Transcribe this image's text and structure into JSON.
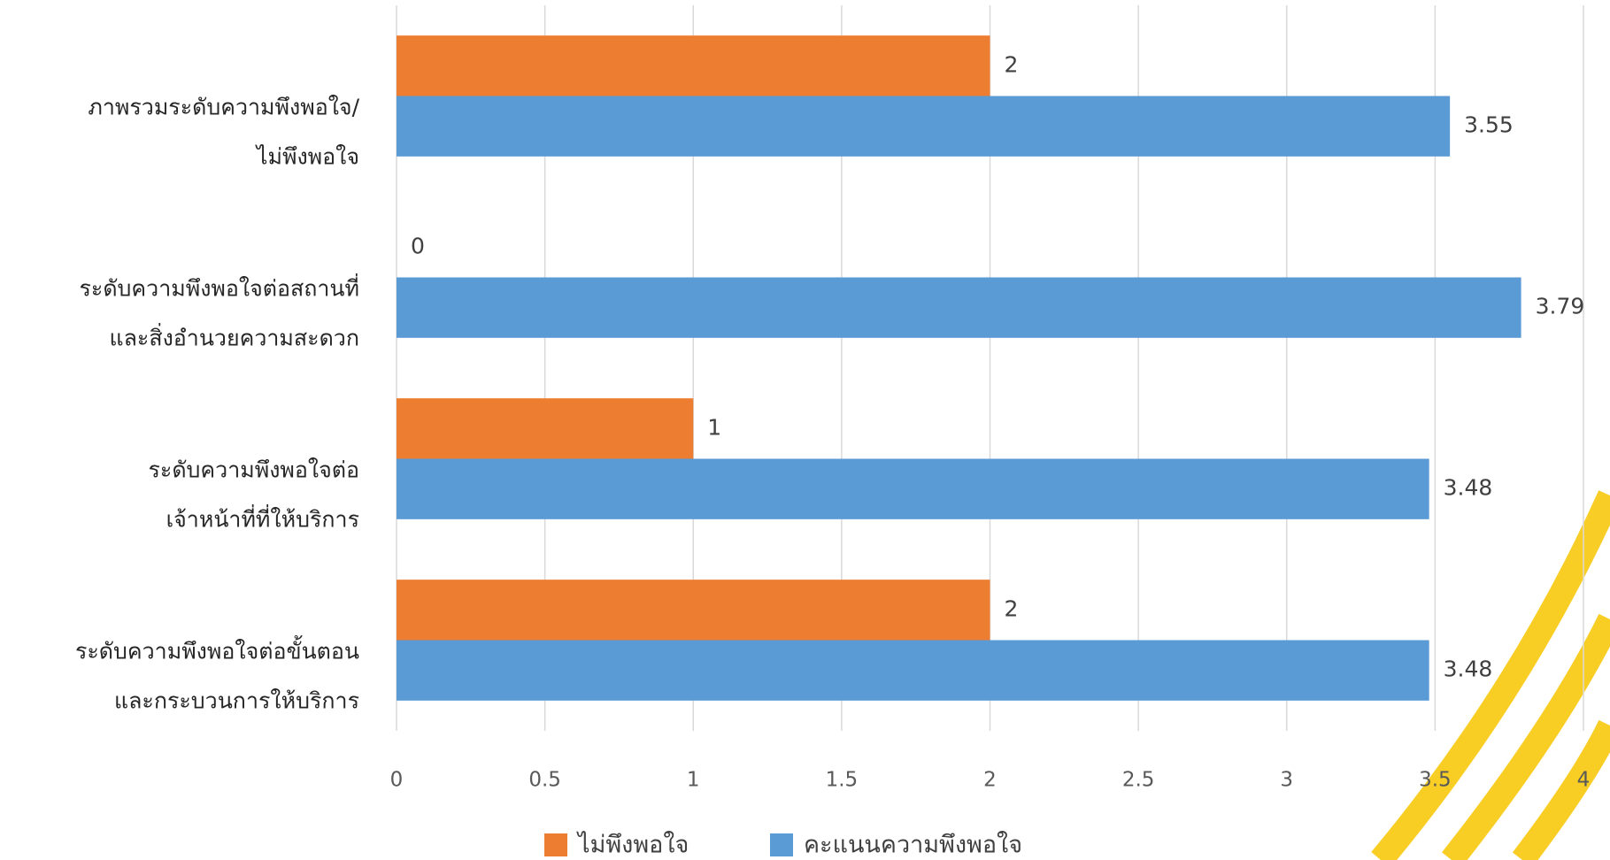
{
  "chart_data": {
    "type": "hbar",
    "categories": [
      [
        "ภาพรวมระดับความพึงพอใจ/",
        "ไม่พึงพอใจ"
      ],
      [
        "ระดับความพึงพอใจต่อสถานที่",
        "และสิ่งอำนวยความสะดวก"
      ],
      [
        "ระดับความพึงพอใจต่อ",
        "เจ้าหน้าที่ที่ให้บริการ"
      ],
      [
        "ระดับความพึงพอใจต่อขั้นตอน",
        "และกระบวนการให้บริการ"
      ]
    ],
    "series": [
      {
        "name": "ไม่พึงพอใจ",
        "color": "#ed7d31",
        "values": [
          2,
          0,
          1,
          2
        ]
      },
      {
        "name": "คะแนนความพึงพอใจ",
        "color": "#5b9bd5",
        "values": [
          3.55,
          3.79,
          3.48,
          3.48
        ]
      }
    ],
    "xlim": [
      0,
      4
    ],
    "xticks": [
      0,
      0.5,
      1,
      1.5,
      2,
      2.5,
      3,
      3.5,
      4
    ],
    "grid": true,
    "legend": "bottom"
  }
}
